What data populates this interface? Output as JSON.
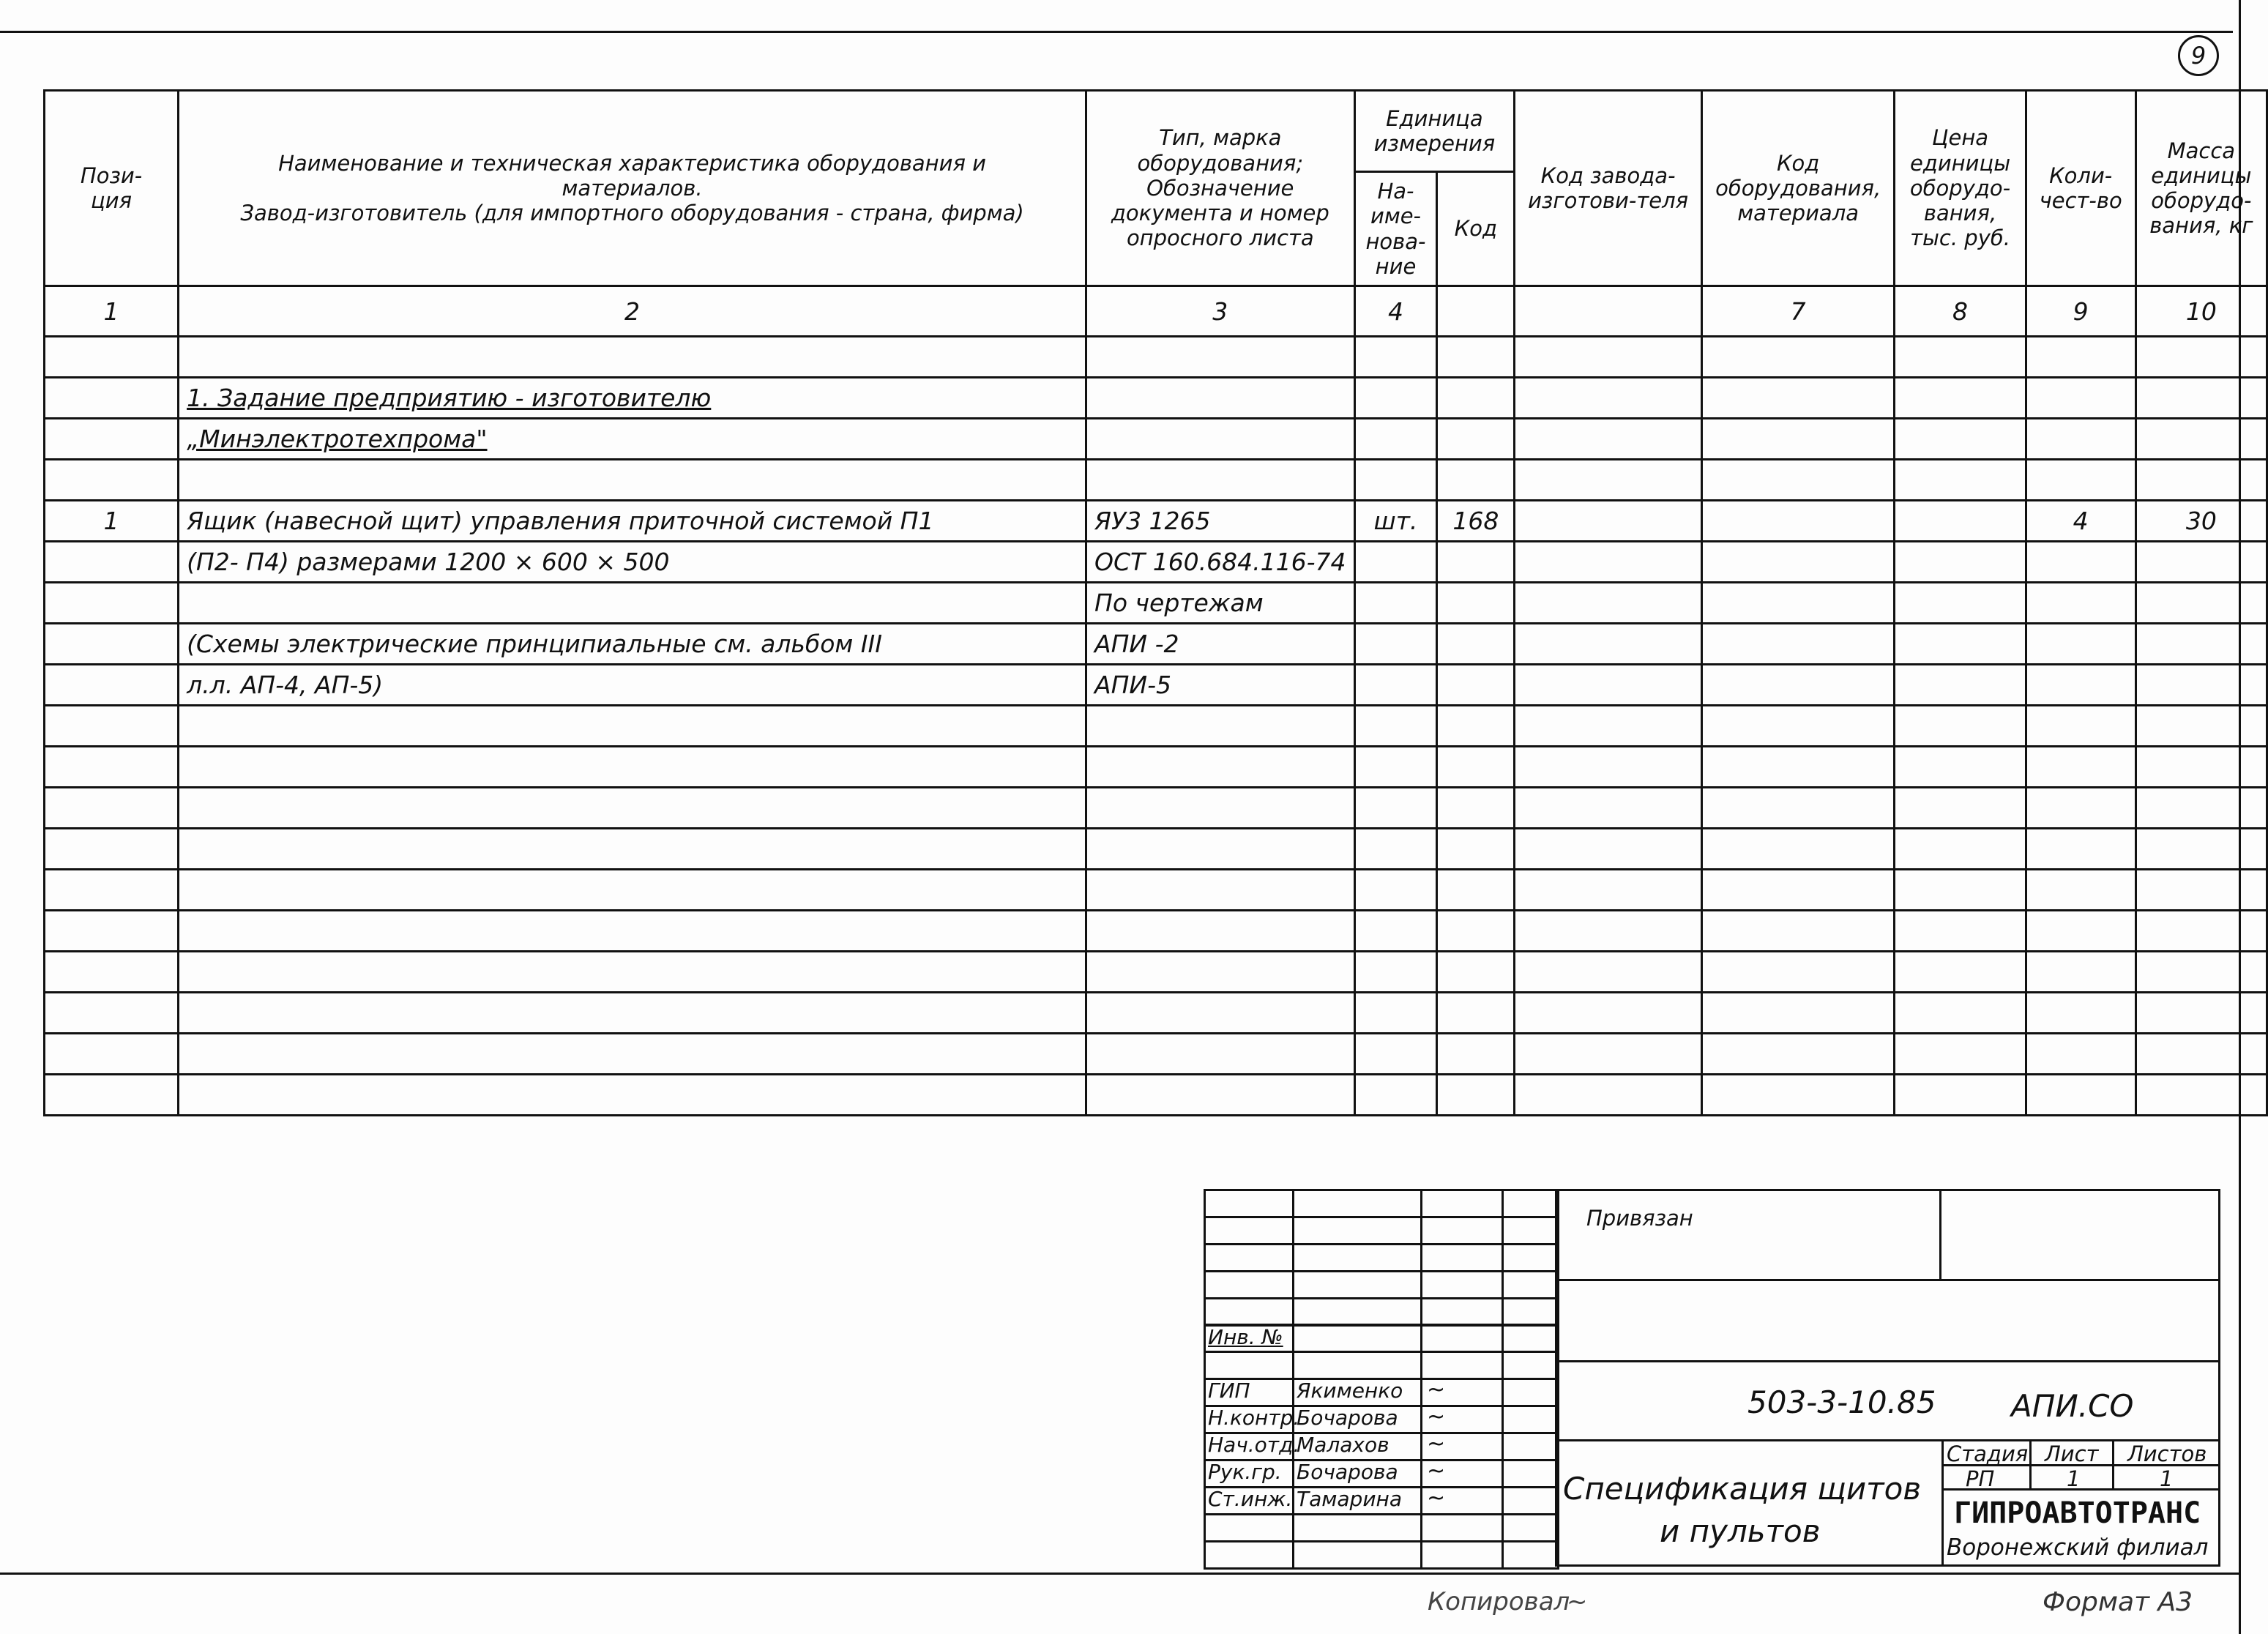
{
  "sheet_marker": "9",
  "header": {
    "col1": "Пози-\nция",
    "col2_line1": "Наименование и техническая характеристика оборудования и",
    "col2_line2": "материалов.",
    "col2_line3": "Завод-изготовитель (для импортного оборудования - страна, фирма)",
    "col3": "Тип, марка оборудования; Обозначение документа и номер опросного листа",
    "unit_group": "Единица измерения",
    "unit_name": "На-име-нова-ние",
    "unit_code": "Код",
    "col6": "Код завода-изготови-теля",
    "col7": "Код оборудования, материала",
    "col8": "Цена единицы оборудо-вания, тыс. руб.",
    "col9": "Коли-чест-во",
    "col10": "Масса единицы оборудо-вания, кг"
  },
  "column_numbers": [
    "1",
    "2",
    "3",
    "4",
    "",
    "",
    "7",
    "8",
    "9",
    "10"
  ],
  "rows": [
    [
      "",
      "",
      "",
      "",
      "",
      "",
      "",
      "",
      "",
      ""
    ],
    [
      "",
      "1. Задание   предприятию - изготовителю",
      "",
      "",
      "",
      "",
      "",
      "",
      "",
      ""
    ],
    [
      "",
      "            „Минэлектротехпрома\"",
      "",
      "",
      "",
      "",
      "",
      "",
      "",
      ""
    ],
    [
      "",
      "",
      "",
      "",
      "",
      "",
      "",
      "",
      "",
      ""
    ],
    [
      "1",
      "Ящик  (навесной щит) управления  приточной системой П1",
      "ЯУ3 1265",
      "шт.",
      "168",
      "",
      "",
      "",
      "4",
      "30"
    ],
    [
      "",
      "(П2- П4)  размерами   1200 × 600 × 500",
      "ОСТ 160.684.116-74",
      "",
      "",
      "",
      "",
      "",
      "",
      ""
    ],
    [
      "",
      "",
      "По чертежам",
      "",
      "",
      "",
      "",
      "",
      "",
      ""
    ],
    [
      "",
      "(Схемы  электрические  принципиальные  см. альбом III",
      "АПИ -2",
      "",
      "",
      "",
      "",
      "",
      "",
      ""
    ],
    [
      "",
      "л.л.  АП-4,   АП-5)",
      "АПИ-5",
      "",
      "",
      "",
      "",
      "",
      "",
      ""
    ],
    [
      "",
      "",
      "",
      "",
      "",
      "",
      "",
      "",
      "",
      ""
    ],
    [
      "",
      "",
      "",
      "",
      "",
      "",
      "",
      "",
      "",
      ""
    ],
    [
      "",
      "",
      "",
      "",
      "",
      "",
      "",
      "",
      "",
      ""
    ],
    [
      "",
      "",
      "",
      "",
      "",
      "",
      "",
      "",
      "",
      ""
    ],
    [
      "",
      "",
      "",
      "",
      "",
      "",
      "",
      "",
      "",
      ""
    ],
    [
      "",
      "",
      "",
      "",
      "",
      "",
      "",
      "",
      "",
      ""
    ],
    [
      "",
      "",
      "",
      "",
      "",
      "",
      "",
      "",
      "",
      ""
    ],
    [
      "",
      "",
      "",
      "",
      "",
      "",
      "",
      "",
      "",
      ""
    ],
    [
      "",
      "",
      "",
      "",
      "",
      "",
      "",
      "",
      "",
      ""
    ],
    [
      "",
      "",
      "",
      "",
      "",
      "",
      "",
      "",
      "",
      ""
    ]
  ],
  "title_block": {
    "privyazan": "Привязан",
    "inv_no": "Инв. №",
    "signers": [
      {
        "role": "ГИП",
        "name": "Якименко"
      },
      {
        "role": "Н.контр.",
        "name": "Бочарова"
      },
      {
        "role": "Нач.отд.",
        "name": "Малахов"
      },
      {
        "role": "Рук.гр.",
        "name": "Бочарова"
      },
      {
        "role": "Ст.инж.",
        "name": "Тамарина"
      }
    ],
    "doc_code": "503-3-10.85",
    "doc_suffix": "АПИ.СО",
    "title_line1": "Спецификация щитов",
    "title_line2": "и пультов",
    "stage_label": "Стадия",
    "sheet_label": "Лист",
    "sheets_label": "Листов",
    "stage": "РП",
    "sheet": "1",
    "sheets": "1",
    "org": "ГИПРОАВТОТРАНС",
    "branch": "Воронежский филиал"
  },
  "footer": {
    "copied": "Копировал",
    "format": "Формат А3"
  }
}
